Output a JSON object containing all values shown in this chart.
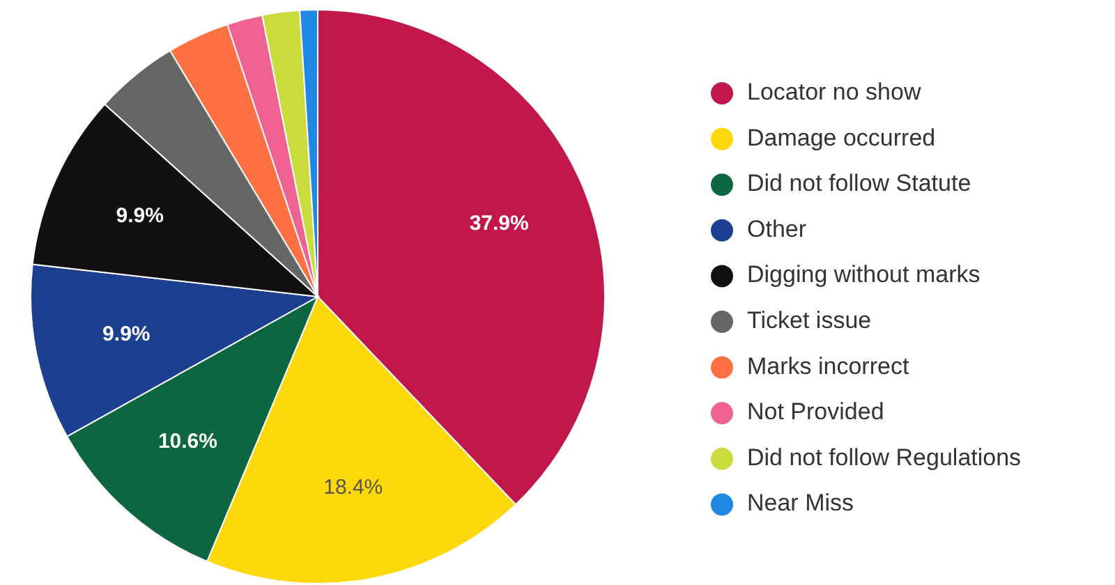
{
  "chart_data": {
    "type": "pie",
    "categories": [
      "Locator no show",
      "Damage occurred",
      "Did not follow Statute",
      "Other",
      "Digging without marks",
      "Ticket issue",
      "Marks incorrect",
      "Not Provided",
      "Did not follow Regulations",
      "Near Miss"
    ],
    "values": [
      37.9,
      18.4,
      10.6,
      9.9,
      9.9,
      4.7,
      3.5,
      2.0,
      2.1,
      1.0
    ],
    "value_labels": [
      "37.9%",
      "18.4%",
      "10.6%",
      "9.9%",
      "9.9%",
      null,
      null,
      null,
      null,
      null
    ],
    "colors": [
      "#c2174d",
      "#fdd80a",
      "#0c6641",
      "#1d3f8f",
      "#111111",
      "#666666",
      "#ff7043",
      "#f06292",
      "#c9dc3c",
      "#1e88e5"
    ],
    "legend": "right"
  }
}
